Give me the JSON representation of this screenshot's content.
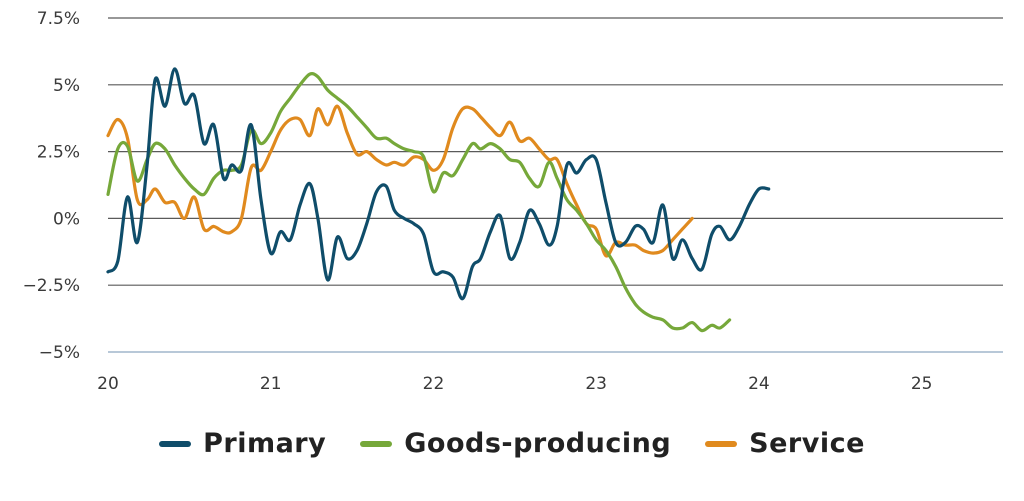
{
  "chart_data": {
    "type": "line",
    "colors": {
      "Primary": "#0f4d6a",
      "Goods-producing": "#76a83a",
      "Service": "#e08a1e",
      "grid": "#5a5a5a",
      "baseline": "#b8c8d8"
    },
    "ylim": [
      -5,
      7.5
    ],
    "xlim": [
      2020.0,
      2025.5
    ],
    "yticks": [
      {
        "value": 7.5,
        "label": "7.5%"
      },
      {
        "value": 5,
        "label": "5%"
      },
      {
        "value": 2.5,
        "label": "2.5%"
      },
      {
        "value": 0,
        "label": "0%"
      },
      {
        "value": -2.5,
        "label": "−2.5%"
      },
      {
        "value": -5,
        "label": "−5%"
      }
    ],
    "xticks": [
      {
        "value": 2020,
        "label": "20"
      },
      {
        "value": 2021,
        "label": "21"
      },
      {
        "value": 2022,
        "label": "22"
      },
      {
        "value": 2023,
        "label": "23"
      },
      {
        "value": 2024,
        "label": "24"
      },
      {
        "value": 2025,
        "label": "25"
      }
    ],
    "series": [
      {
        "name": "Primary",
        "points": [
          [
            2020.0,
            -2.0
          ],
          [
            2020.06,
            -1.6
          ],
          [
            2020.12,
            0.8
          ],
          [
            2020.18,
            -0.9
          ],
          [
            2020.24,
            2.0
          ],
          [
            2020.29,
            5.2
          ],
          [
            2020.35,
            4.2
          ],
          [
            2020.41,
            5.6
          ],
          [
            2020.47,
            4.3
          ],
          [
            2020.53,
            4.6
          ],
          [
            2020.59,
            2.8
          ],
          [
            2020.65,
            3.5
          ],
          [
            2020.71,
            1.5
          ],
          [
            2020.76,
            2.0
          ],
          [
            2020.82,
            1.8
          ],
          [
            2020.88,
            3.5
          ],
          [
            2020.94,
            0.7
          ],
          [
            2021.0,
            -1.3
          ],
          [
            2021.06,
            -0.5
          ],
          [
            2021.12,
            -0.8
          ],
          [
            2021.18,
            0.5
          ],
          [
            2021.24,
            1.3
          ],
          [
            2021.29,
            0.0
          ],
          [
            2021.35,
            -2.3
          ],
          [
            2021.41,
            -0.7
          ],
          [
            2021.47,
            -1.5
          ],
          [
            2021.53,
            -1.2
          ],
          [
            2021.59,
            -0.2
          ],
          [
            2021.65,
            1.0
          ],
          [
            2021.71,
            1.2
          ],
          [
            2021.76,
            0.3
          ],
          [
            2021.82,
            0.0
          ],
          [
            2021.88,
            -0.2
          ],
          [
            2021.94,
            -0.6
          ],
          [
            2022.0,
            -2.0
          ],
          [
            2022.06,
            -2.0
          ],
          [
            2022.12,
            -2.2
          ],
          [
            2022.18,
            -3.0
          ],
          [
            2022.24,
            -1.8
          ],
          [
            2022.29,
            -1.5
          ],
          [
            2022.35,
            -0.5
          ],
          [
            2022.41,
            0.1
          ],
          [
            2022.47,
            -1.5
          ],
          [
            2022.53,
            -0.9
          ],
          [
            2022.59,
            0.3
          ],
          [
            2022.65,
            -0.2
          ],
          [
            2022.71,
            -1.0
          ],
          [
            2022.76,
            -0.3
          ],
          [
            2022.82,
            2.0
          ],
          [
            2022.88,
            1.7
          ],
          [
            2022.94,
            2.2
          ],
          [
            2023.0,
            2.2
          ],
          [
            2023.06,
            0.6
          ],
          [
            2023.12,
            -0.9
          ],
          [
            2023.18,
            -0.9
          ],
          [
            2023.24,
            -0.3
          ],
          [
            2023.29,
            -0.4
          ],
          [
            2023.35,
            -0.9
          ],
          [
            2023.41,
            0.5
          ],
          [
            2023.47,
            -1.5
          ],
          [
            2023.53,
            -0.8
          ],
          [
            2023.59,
            -1.5
          ],
          [
            2023.65,
            -1.9
          ],
          [
            2023.71,
            -0.6
          ],
          [
            2023.76,
            -0.3
          ],
          [
            2023.82,
            -0.8
          ],
          [
            2023.88,
            -0.3
          ],
          [
            2023.94,
            0.5
          ],
          [
            2024.0,
            1.1
          ],
          [
            2024.06,
            1.1
          ]
        ]
      },
      {
        "name": "Goods-producing",
        "points": [
          [
            2020.0,
            0.9
          ],
          [
            2020.06,
            2.6
          ],
          [
            2020.12,
            2.7
          ],
          [
            2020.18,
            1.4
          ],
          [
            2020.24,
            2.2
          ],
          [
            2020.29,
            2.8
          ],
          [
            2020.35,
            2.6
          ],
          [
            2020.41,
            2.0
          ],
          [
            2020.47,
            1.5
          ],
          [
            2020.53,
            1.1
          ],
          [
            2020.59,
            0.9
          ],
          [
            2020.65,
            1.5
          ],
          [
            2020.71,
            1.8
          ],
          [
            2020.76,
            1.8
          ],
          [
            2020.82,
            2.0
          ],
          [
            2020.88,
            3.3
          ],
          [
            2020.94,
            2.8
          ],
          [
            2021.0,
            3.2
          ],
          [
            2021.06,
            4.0
          ],
          [
            2021.12,
            4.5
          ],
          [
            2021.18,
            5.0
          ],
          [
            2021.24,
            5.4
          ],
          [
            2021.29,
            5.3
          ],
          [
            2021.35,
            4.8
          ],
          [
            2021.41,
            4.5
          ],
          [
            2021.47,
            4.2
          ],
          [
            2021.53,
            3.8
          ],
          [
            2021.59,
            3.4
          ],
          [
            2021.65,
            3.0
          ],
          [
            2021.71,
            3.0
          ],
          [
            2021.76,
            2.8
          ],
          [
            2021.82,
            2.6
          ],
          [
            2021.88,
            2.5
          ],
          [
            2021.94,
            2.3
          ],
          [
            2022.0,
            1.0
          ],
          [
            2022.06,
            1.7
          ],
          [
            2022.12,
            1.6
          ],
          [
            2022.18,
            2.2
          ],
          [
            2022.24,
            2.8
          ],
          [
            2022.29,
            2.6
          ],
          [
            2022.35,
            2.8
          ],
          [
            2022.41,
            2.6
          ],
          [
            2022.47,
            2.2
          ],
          [
            2022.53,
            2.1
          ],
          [
            2022.59,
            1.5
          ],
          [
            2022.65,
            1.2
          ],
          [
            2022.71,
            2.1
          ],
          [
            2022.76,
            1.5
          ],
          [
            2022.82,
            0.7
          ],
          [
            2022.88,
            0.3
          ],
          [
            2022.94,
            -0.2
          ],
          [
            2023.0,
            -0.8
          ],
          [
            2023.06,
            -1.2
          ],
          [
            2023.12,
            -1.8
          ],
          [
            2023.18,
            -2.6
          ],
          [
            2023.24,
            -3.2
          ],
          [
            2023.29,
            -3.5
          ],
          [
            2023.35,
            -3.7
          ],
          [
            2023.41,
            -3.8
          ],
          [
            2023.47,
            -4.1
          ],
          [
            2023.53,
            -4.1
          ],
          [
            2023.59,
            -3.9
          ],
          [
            2023.65,
            -4.2
          ],
          [
            2023.71,
            -4.0
          ],
          [
            2023.76,
            -4.1
          ],
          [
            2023.82,
            -3.8
          ]
        ]
      },
      {
        "name": "Service",
        "points": [
          [
            2020.0,
            3.1
          ],
          [
            2020.06,
            3.7
          ],
          [
            2020.12,
            3.0
          ],
          [
            2020.18,
            0.7
          ],
          [
            2020.24,
            0.7
          ],
          [
            2020.29,
            1.1
          ],
          [
            2020.35,
            0.6
          ],
          [
            2020.41,
            0.6
          ],
          [
            2020.47,
            0.0
          ],
          [
            2020.53,
            0.8
          ],
          [
            2020.59,
            -0.4
          ],
          [
            2020.65,
            -0.3
          ],
          [
            2020.71,
            -0.5
          ],
          [
            2020.76,
            -0.5
          ],
          [
            2020.82,
            0.0
          ],
          [
            2020.88,
            1.9
          ],
          [
            2020.94,
            1.8
          ],
          [
            2021.0,
            2.5
          ],
          [
            2021.06,
            3.3
          ],
          [
            2021.12,
            3.7
          ],
          [
            2021.18,
            3.7
          ],
          [
            2021.24,
            3.1
          ],
          [
            2021.29,
            4.1
          ],
          [
            2021.35,
            3.5
          ],
          [
            2021.41,
            4.2
          ],
          [
            2021.47,
            3.2
          ],
          [
            2021.53,
            2.4
          ],
          [
            2021.59,
            2.5
          ],
          [
            2021.65,
            2.2
          ],
          [
            2021.71,
            2.0
          ],
          [
            2021.76,
            2.1
          ],
          [
            2021.82,
            2.0
          ],
          [
            2021.88,
            2.3
          ],
          [
            2021.94,
            2.2
          ],
          [
            2022.0,
            1.8
          ],
          [
            2022.06,
            2.2
          ],
          [
            2022.12,
            3.4
          ],
          [
            2022.18,
            4.1
          ],
          [
            2022.24,
            4.1
          ],
          [
            2022.29,
            3.8
          ],
          [
            2022.35,
            3.4
          ],
          [
            2022.41,
            3.1
          ],
          [
            2022.47,
            3.6
          ],
          [
            2022.53,
            2.9
          ],
          [
            2022.59,
            3.0
          ],
          [
            2022.65,
            2.6
          ],
          [
            2022.71,
            2.2
          ],
          [
            2022.76,
            2.2
          ],
          [
            2022.82,
            1.3
          ],
          [
            2022.88,
            0.5
          ],
          [
            2022.94,
            -0.2
          ],
          [
            2023.0,
            -0.4
          ],
          [
            2023.06,
            -1.4
          ],
          [
            2023.12,
            -0.9
          ],
          [
            2023.18,
            -1.0
          ],
          [
            2023.24,
            -1.0
          ],
          [
            2023.29,
            -1.2
          ],
          [
            2023.35,
            -1.3
          ],
          [
            2023.41,
            -1.2
          ],
          [
            2023.47,
            -0.8
          ],
          [
            2023.53,
            -0.4
          ],
          [
            2023.59,
            0.0
          ]
        ]
      }
    ]
  }
}
